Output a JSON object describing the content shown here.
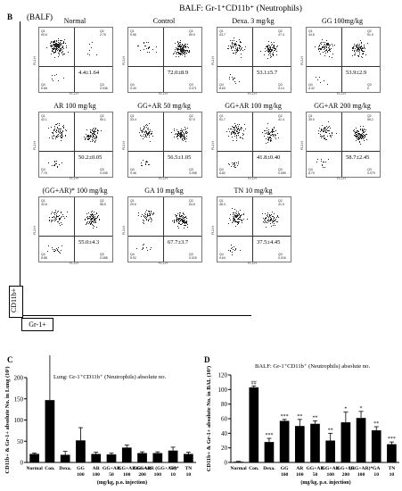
{
  "panel_b": {
    "letter": "B",
    "source": "(BALF)",
    "title": "BALF: Gr-1⁺CD11b⁺ (Neutrophils)",
    "y_marker": "CD11b+",
    "x_marker": "Gr-1+",
    "axis_x": "FL1-H",
    "axis_y": "FL2-H",
    "plots": [
      {
        "title": "Normal",
        "value": "4.4±1.64",
        "q1": "Q1",
        "q1v": "90.6",
        "q2": "Q2",
        "q2v": "2.75",
        "q3": "Q3",
        "q3v": "0.036",
        "q4": "Q4",
        "q4v": "6.66"
      },
      {
        "title": "Control",
        "value": "72.0±8.9",
        "q1": "Q1",
        "q1v": "9.56",
        "q2": "Q2",
        "q2v": "89.9",
        "q3": "Q3",
        "q3v": "0.071",
        "q4": "Q4",
        "q4v": "0.40"
      },
      {
        "title": "Dexa. 3 mg/kg",
        "value": "53.1±5.7",
        "q1": "Q1",
        "q1v": "43.7",
        "q2": "Q2",
        "q2v": "47.4",
        "q3": "Q3",
        "q3v": "0.14",
        "q4": "Q4",
        "q4v": "8.63"
      },
      {
        "title": "GG 100mg/kg",
        "value": "53.9±2.9",
        "q1": "Q1",
        "q1v": "44.6",
        "q2": "Q2",
        "q2v": "51.0",
        "q3": "Q3",
        "q3v": "0",
        "q4": "Q4",
        "q4v": "4.42"
      },
      {
        "title": "AR 100 mg/kg",
        "value": "50.2±0.05",
        "q1": "Q1",
        "q1v": "42.1",
        "q2": "Q2",
        "q2v": "50.1",
        "q3": "Q3",
        "q3v": "0.035",
        "q4": "Q4",
        "q4v": "7.76"
      },
      {
        "title": "GG+AR 50 mg/kg",
        "value": "56.5±1.05",
        "q1": "Q1",
        "q1v": "33.4",
        "q2": "Q2",
        "q2v": "57.0",
        "q3": "Q3",
        "q3v": "0.098",
        "q4": "Q4",
        "q4v": "9.46"
      },
      {
        "title": "GG+AR 100 mg/kg",
        "value": "41.8±0.40",
        "q1": "Q1",
        "q1v": "51.7",
        "q2": "Q2",
        "q2v": "41.4",
        "q3": "Q3",
        "q3v": "0.059",
        "q4": "Q4",
        "q4v": "6.82"
      },
      {
        "title": "GG+AR 200 mg/kg",
        "value": "58.7±2.45",
        "q1": "Q1",
        "q1v": "35.0",
        "q2": "Q2",
        "q2v": "56.2",
        "q3": "Q3",
        "q3v": "0.079",
        "q4": "Q4",
        "q4v": "8.70"
      },
      {
        "title": "(GG+AR)* 100 mg/kg",
        "value": "55.0±4.3",
        "q1": "Q1",
        "q1v": "32.6",
        "q2": "Q2",
        "q2v": "58.5",
        "q3": "Q3",
        "q3v": "0.088",
        "q4": "Q4",
        "q4v": "8.88"
      },
      {
        "title": "GA 10 mg/kg",
        "value": "67.7±3.7",
        "q1": "Q1",
        "q1v": "29.6",
        "q2": "Q2",
        "q2v": "64.5",
        "q3": "Q3",
        "q3v": "0.015",
        "q4": "Q4",
        "q4v": "5.92"
      },
      {
        "title": "TN 10 mg/kg",
        "value": "37.5±4.45",
        "q1": "Q1",
        "q1v": "48.4",
        "q2": "Q2",
        "q2v": "41.9",
        "q3": "Q3",
        "q3v": "0.016",
        "q4": "Q4",
        "q4v": "9.64"
      }
    ]
  },
  "chart_data": [
    {
      "type": "bar",
      "letter": "C",
      "title": "Lung: Gr-1⁺CD11b⁺ (Neutrophils) absolute no.",
      "ylabel": "CD11b+ & Gr-1+ absolute No. in Lung (10³)",
      "xlabel": "(mg/kg, p.o. injection)",
      "ylim": [
        0,
        200
      ],
      "yticks": [
        0,
        50,
        100,
        150,
        200
      ],
      "categories": [
        "Normal",
        "Con.",
        "Dexa.",
        "GG",
        "AR",
        "GG+AR",
        "GG+AR",
        "GG+AR",
        "GG+AR (GG+AR)*",
        "GA",
        "TN"
      ],
      "category_doses": [
        "",
        "",
        "",
        "100",
        "100",
        "50",
        "100",
        "200",
        "100",
        "10",
        "10"
      ],
      "values": [
        20,
        147,
        18,
        52,
        20,
        19,
        35,
        22,
        22,
        28,
        20
      ],
      "errors": [
        2,
        115,
        8,
        30,
        4,
        3,
        6,
        3,
        3,
        8,
        4
      ],
      "significance": [
        "",
        "",
        "",
        "",
        "",
        "",
        "",
        "",
        "",
        "",
        ""
      ]
    },
    {
      "type": "bar",
      "letter": "D",
      "title": "BALF: Gr-1⁺CD11b⁺ (Neutrophils) absolute no.",
      "ylabel": "CD11b+ & Gr-1+ absolute No. in BAL (10³)",
      "xlabel": "(mg/kg, p.o. injection)",
      "ylim": [
        0,
        120
      ],
      "yticks": [
        0,
        20,
        40,
        60,
        80,
        100,
        120
      ],
      "categories": [
        "Normal",
        "Con.",
        "Dexa.",
        "GG",
        "AR",
        "GG+AR",
        "GG+AR",
        "GG+AR",
        "(GG+AR)*",
        "GA",
        "TN"
      ],
      "category_doses": [
        "",
        "",
        "",
        "100",
        "100",
        "50",
        "100",
        "200",
        "100",
        "10",
        "10"
      ],
      "values": [
        1,
        103,
        28,
        57,
        50,
        53,
        30,
        55,
        61,
        44,
        25
      ],
      "errors": [
        0.5,
        2,
        5,
        2,
        9,
        4,
        10,
        14,
        9,
        5,
        3
      ],
      "significance": [
        "",
        "##",
        "***",
        "***",
        "**",
        "**",
        "**",
        "*",
        "*",
        "**",
        "***"
      ]
    }
  ]
}
